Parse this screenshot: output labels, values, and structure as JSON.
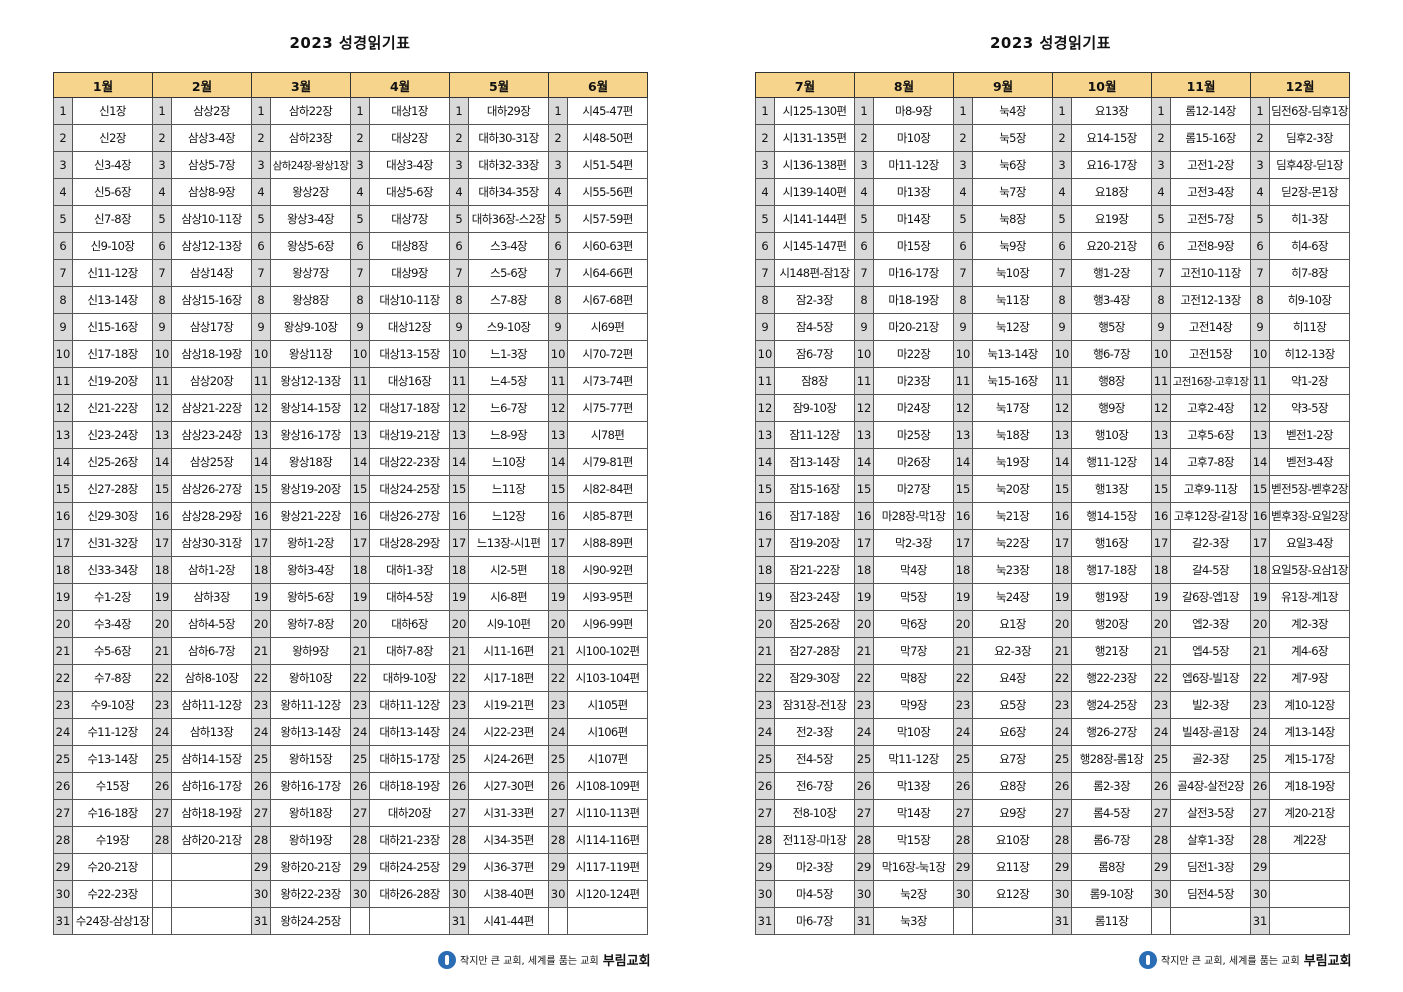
{
  "pages": [
    {
      "title": "2023 성경읽기표",
      "months": [
        "1월",
        "2월",
        "3월",
        "4월",
        "5월",
        "6월"
      ],
      "rows": [
        [
          "1",
          "신1장",
          "1",
          "삼상2장",
          "1",
          "삼하22장",
          "1",
          "대상1장",
          "1",
          "대하29장",
          "1",
          "시45-47편"
        ],
        [
          "2",
          "신2장",
          "2",
          "삼상3-4장",
          "2",
          "삼하23장",
          "2",
          "대상2장",
          "2",
          "대하30-31장",
          "2",
          "시48-50편"
        ],
        [
          "3",
          "신3-4장",
          "3",
          "삼상5-7장",
          "3",
          "삼하24장-왕상1장",
          "3",
          "대상3-4장",
          "3",
          "대하32-33장",
          "3",
          "시51-54편"
        ],
        [
          "4",
          "신5-6장",
          "4",
          "삼상8-9장",
          "4",
          "왕상2장",
          "4",
          "대상5-6장",
          "4",
          "대하34-35장",
          "4",
          "시55-56편"
        ],
        [
          "5",
          "신7-8장",
          "5",
          "삼상10-11장",
          "5",
          "왕상3-4장",
          "5",
          "대상7장",
          "5",
          "대하36장-스2장",
          "5",
          "시57-59편"
        ],
        [
          "6",
          "신9-10장",
          "6",
          "삼상12-13장",
          "6",
          "왕상5-6장",
          "6",
          "대상8장",
          "6",
          "스3-4장",
          "6",
          "시60-63편"
        ],
        [
          "7",
          "신11-12장",
          "7",
          "삼상14장",
          "7",
          "왕상7장",
          "7",
          "대상9장",
          "7",
          "스5-6장",
          "7",
          "시64-66편"
        ],
        [
          "8",
          "신13-14장",
          "8",
          "삼상15-16장",
          "8",
          "왕상8장",
          "8",
          "대상10-11장",
          "8",
          "스7-8장",
          "8",
          "시67-68편"
        ],
        [
          "9",
          "신15-16장",
          "9",
          "삼상17장",
          "9",
          "왕상9-10장",
          "9",
          "대상12장",
          "9",
          "스9-10장",
          "9",
          "시69편"
        ],
        [
          "10",
          "신17-18장",
          "10",
          "삼상18-19장",
          "10",
          "왕상11장",
          "10",
          "대상13-15장",
          "10",
          "느1-3장",
          "10",
          "시70-72편"
        ],
        [
          "11",
          "신19-20장",
          "11",
          "삼상20장",
          "11",
          "왕상12-13장",
          "11",
          "대상16장",
          "11",
          "느4-5장",
          "11",
          "시73-74편"
        ],
        [
          "12",
          "신21-22장",
          "12",
          "삼상21-22장",
          "12",
          "왕상14-15장",
          "12",
          "대상17-18장",
          "12",
          "느6-7장",
          "12",
          "시75-77편"
        ],
        [
          "13",
          "신23-24장",
          "13",
          "삼상23-24장",
          "13",
          "왕상16-17장",
          "13",
          "대상19-21장",
          "13",
          "느8-9장",
          "13",
          "시78편"
        ],
        [
          "14",
          "신25-26장",
          "14",
          "삼상25장",
          "14",
          "왕상18장",
          "14",
          "대상22-23장",
          "14",
          "느10장",
          "14",
          "시79-81편"
        ],
        [
          "15",
          "신27-28장",
          "15",
          "삼상26-27장",
          "15",
          "왕상19-20장",
          "15",
          "대상24-25장",
          "15",
          "느11장",
          "15",
          "시82-84편"
        ],
        [
          "16",
          "신29-30장",
          "16",
          "삼상28-29장",
          "16",
          "왕상21-22장",
          "16",
          "대상26-27장",
          "16",
          "느12장",
          "16",
          "시85-87편"
        ],
        [
          "17",
          "신31-32장",
          "17",
          "삼상30-31장",
          "17",
          "왕하1-2장",
          "17",
          "대상28-29장",
          "17",
          "느13장-시1편",
          "17",
          "시88-89편"
        ],
        [
          "18",
          "신33-34장",
          "18",
          "삼하1-2장",
          "18",
          "왕하3-4장",
          "18",
          "대하1-3장",
          "18",
          "시2-5편",
          "18",
          "시90-92편"
        ],
        [
          "19",
          "수1-2장",
          "19",
          "삼하3장",
          "19",
          "왕하5-6장",
          "19",
          "대하4-5장",
          "19",
          "시6-8편",
          "19",
          "시93-95편"
        ],
        [
          "20",
          "수3-4장",
          "20",
          "삼하4-5장",
          "20",
          "왕하7-8장",
          "20",
          "대하6장",
          "20",
          "시9-10편",
          "20",
          "시96-99편"
        ],
        [
          "21",
          "수5-6장",
          "21",
          "삼하6-7장",
          "21",
          "왕하9장",
          "21",
          "대하7-8장",
          "21",
          "시11-16편",
          "21",
          "시100-102편"
        ],
        [
          "22",
          "수7-8장",
          "22",
          "삼하8-10장",
          "22",
          "왕하10장",
          "22",
          "대하9-10장",
          "22",
          "시17-18편",
          "22",
          "시103-104편"
        ],
        [
          "23",
          "수9-10장",
          "23",
          "삼하11-12장",
          "23",
          "왕하11-12장",
          "23",
          "대하11-12장",
          "23",
          "시19-21편",
          "23",
          "시105편"
        ],
        [
          "24",
          "수11-12장",
          "24",
          "삼하13장",
          "24",
          "왕하13-14장",
          "24",
          "대하13-14장",
          "24",
          "시22-23편",
          "24",
          "시106편"
        ],
        [
          "25",
          "수13-14장",
          "25",
          "삼하14-15장",
          "25",
          "왕하15장",
          "25",
          "대하15-17장",
          "25",
          "시24-26편",
          "25",
          "시107편"
        ],
        [
          "26",
          "수15장",
          "26",
          "삼하16-17장",
          "26",
          "왕하16-17장",
          "26",
          "대하18-19장",
          "26",
          "시27-30편",
          "26",
          "시108-109편"
        ],
        [
          "27",
          "수16-18장",
          "27",
          "삼하18-19장",
          "27",
          "왕하18장",
          "27",
          "대하20장",
          "27",
          "시31-33편",
          "27",
          "시110-113편"
        ],
        [
          "28",
          "수19장",
          "28",
          "삼하20-21장",
          "28",
          "왕하19장",
          "28",
          "대하21-23장",
          "28",
          "시34-35편",
          "28",
          "시114-116편"
        ],
        [
          "29",
          "수20-21장",
          "",
          "",
          "29",
          "왕하20-21장",
          "29",
          "대하24-25장",
          "29",
          "시36-37편",
          "29",
          "시117-119편"
        ],
        [
          "30",
          "수22-23장",
          "",
          "",
          "30",
          "왕하22-23장",
          "30",
          "대하26-28장",
          "30",
          "시38-40편",
          "30",
          "시120-124편"
        ],
        [
          "31",
          "수24장-삼상1장",
          "",
          "",
          "31",
          "왕하24-25장",
          "",
          "",
          "31",
          "시41-44편",
          "",
          ""
        ]
      ],
      "footer": {
        "slogan": "작지만 큰 교회, 세계를 품는 교회",
        "church": "부림교회"
      }
    },
    {
      "title": "2023 성경읽기표",
      "months": [
        "7월",
        "8월",
        "9월",
        "10월",
        "11월",
        "12월"
      ],
      "rows": [
        [
          "1",
          "시125-130편",
          "1",
          "마8-9장",
          "1",
          "눅4장",
          "1",
          "요13장",
          "1",
          "롬12-14장",
          "1",
          "딤전6장-딤후1장"
        ],
        [
          "2",
          "시131-135편",
          "2",
          "마10장",
          "2",
          "눅5장",
          "2",
          "요14-15장",
          "2",
          "롬15-16장",
          "2",
          "딤후2-3장"
        ],
        [
          "3",
          "시136-138편",
          "3",
          "마11-12장",
          "3",
          "눅6장",
          "3",
          "요16-17장",
          "3",
          "고전1-2장",
          "3",
          "딤후4장-딛1장"
        ],
        [
          "4",
          "시139-140편",
          "4",
          "마13장",
          "4",
          "눅7장",
          "4",
          "요18장",
          "4",
          "고전3-4장",
          "4",
          "딛2장-몬1장"
        ],
        [
          "5",
          "시141-144편",
          "5",
          "마14장",
          "5",
          "눅8장",
          "5",
          "요19장",
          "5",
          "고전5-7장",
          "5",
          "히1-3장"
        ],
        [
          "6",
          "시145-147편",
          "6",
          "마15장",
          "6",
          "눅9장",
          "6",
          "요20-21장",
          "6",
          "고전8-9장",
          "6",
          "히4-6장"
        ],
        [
          "7",
          "시148편-잠1장",
          "7",
          "마16-17장",
          "7",
          "눅10장",
          "7",
          "행1-2장",
          "7",
          "고전10-11장",
          "7",
          "히7-8장"
        ],
        [
          "8",
          "잠2-3장",
          "8",
          "마18-19장",
          "8",
          "눅11장",
          "8",
          "행3-4장",
          "8",
          "고전12-13장",
          "8",
          "히9-10장"
        ],
        [
          "9",
          "잠4-5장",
          "9",
          "마20-21장",
          "9",
          "눅12장",
          "9",
          "행5장",
          "9",
          "고전14장",
          "9",
          "히11장"
        ],
        [
          "10",
          "잠6-7장",
          "10",
          "마22장",
          "10",
          "눅13-14장",
          "10",
          "행6-7장",
          "10",
          "고전15장",
          "10",
          "히12-13장"
        ],
        [
          "11",
          "잠8장",
          "11",
          "마23장",
          "11",
          "눅15-16장",
          "11",
          "행8장",
          "11",
          "고전16장-고후1장",
          "11",
          "약1-2장"
        ],
        [
          "12",
          "잠9-10장",
          "12",
          "마24장",
          "12",
          "눅17장",
          "12",
          "행9장",
          "12",
          "고후2-4장",
          "12",
          "약3-5장"
        ],
        [
          "13",
          "잠11-12장",
          "13",
          "마25장",
          "13",
          "눅18장",
          "13",
          "행10장",
          "13",
          "고후5-6장",
          "13",
          "벧전1-2장"
        ],
        [
          "14",
          "잠13-14장",
          "14",
          "마26장",
          "14",
          "눅19장",
          "14",
          "행11-12장",
          "14",
          "고후7-8장",
          "14",
          "벧전3-4장"
        ],
        [
          "15",
          "잠15-16장",
          "15",
          "마27장",
          "15",
          "눅20장",
          "15",
          "행13장",
          "15",
          "고후9-11장",
          "15",
          "벧전5장-벧후2장"
        ],
        [
          "16",
          "잠17-18장",
          "16",
          "마28장-막1장",
          "16",
          "눅21장",
          "16",
          "행14-15장",
          "16",
          "고후12장-갈1장",
          "16",
          "벧후3장-요일2장"
        ],
        [
          "17",
          "잠19-20장",
          "17",
          "막2-3장",
          "17",
          "눅22장",
          "17",
          "행16장",
          "17",
          "갈2-3장",
          "17",
          "요일3-4장"
        ],
        [
          "18",
          "잠21-22장",
          "18",
          "막4장",
          "18",
          "눅23장",
          "18",
          "행17-18장",
          "18",
          "갈4-5장",
          "18",
          "요일5장-요삼1장"
        ],
        [
          "19",
          "잠23-24장",
          "19",
          "막5장",
          "19",
          "눅24장",
          "19",
          "행19장",
          "19",
          "갈6장-엡1장",
          "19",
          "유1장-계1장"
        ],
        [
          "20",
          "잠25-26장",
          "20",
          "막6장",
          "20",
          "요1장",
          "20",
          "행20장",
          "20",
          "엡2-3장",
          "20",
          "계2-3장"
        ],
        [
          "21",
          "잠27-28장",
          "21",
          "막7장",
          "21",
          "요2-3장",
          "21",
          "행21장",
          "21",
          "엡4-5장",
          "21",
          "계4-6장"
        ],
        [
          "22",
          "잠29-30장",
          "22",
          "막8장",
          "22",
          "요4장",
          "22",
          "행22-23장",
          "22",
          "엡6장-빌1장",
          "22",
          "계7-9장"
        ],
        [
          "23",
          "잠31장-전1장",
          "23",
          "막9장",
          "23",
          "요5장",
          "23",
          "행24-25장",
          "23",
          "빌2-3장",
          "23",
          "계10-12장"
        ],
        [
          "24",
          "전2-3장",
          "24",
          "막10장",
          "24",
          "요6장",
          "24",
          "행26-27장",
          "24",
          "빌4장-골1장",
          "24",
          "계13-14장"
        ],
        [
          "25",
          "전4-5장",
          "25",
          "막11-12장",
          "25",
          "요7장",
          "25",
          "행28장-롬1장",
          "25",
          "골2-3장",
          "25",
          "계15-17장"
        ],
        [
          "26",
          "전6-7장",
          "26",
          "막13장",
          "26",
          "요8장",
          "26",
          "롬2-3장",
          "26",
          "골4장-살전2장",
          "26",
          "계18-19장"
        ],
        [
          "27",
          "전8-10장",
          "27",
          "막14장",
          "27",
          "요9장",
          "27",
          "롬4-5장",
          "27",
          "살전3-5장",
          "27",
          "계20-21장"
        ],
        [
          "28",
          "전11장-마1장",
          "28",
          "막15장",
          "28",
          "요10장",
          "28",
          "롬6-7장",
          "28",
          "살후1-3장",
          "28",
          "계22장"
        ],
        [
          "29",
          "마2-3장",
          "29",
          "막16장-눅1장",
          "29",
          "요11장",
          "29",
          "롬8장",
          "29",
          "딤전1-3장",
          "29",
          ""
        ],
        [
          "30",
          "마4-5장",
          "30",
          "눅2장",
          "30",
          "요12장",
          "30",
          "롬9-10장",
          "30",
          "딤전4-5장",
          "30",
          ""
        ],
        [
          "31",
          "마6-7장",
          "31",
          "눅3장",
          "",
          "",
          "31",
          "롬11장",
          "",
          "",
          "31",
          ""
        ]
      ],
      "footer": {
        "slogan": "작지만 큰 교회, 세계를 품는 교회",
        "church": "부림교회"
      }
    }
  ]
}
